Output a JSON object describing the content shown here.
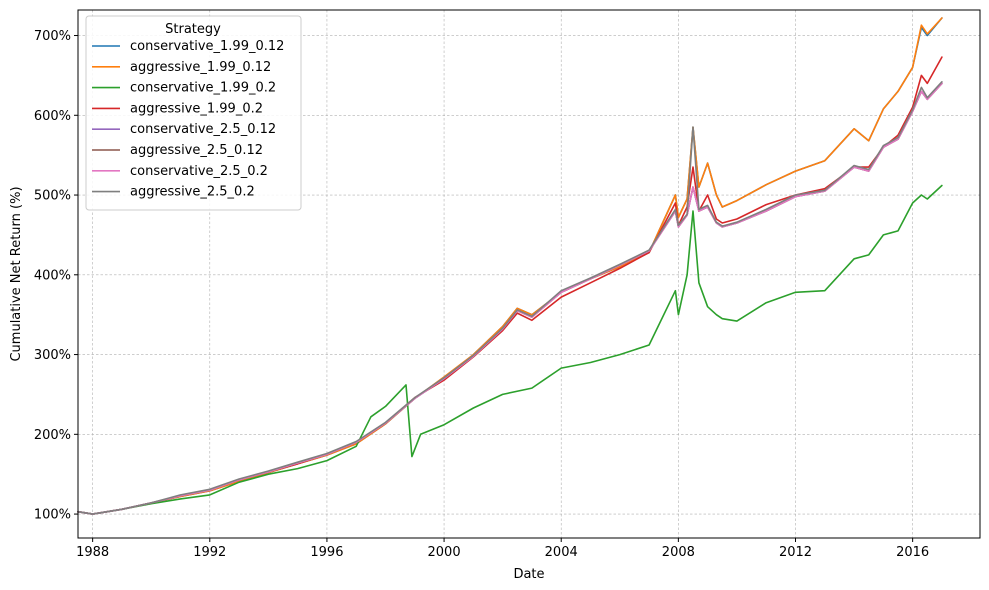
{
  "chart_data": {
    "type": "line",
    "xlabel": "Date",
    "ylabel": "Cumulative Net Return (%)",
    "x_ticks": [
      "1988",
      "1992",
      "1996",
      "2000",
      "2004",
      "2008",
      "2012",
      "2016"
    ],
    "y_ticks": [
      "100%",
      "200%",
      "300%",
      "400%",
      "500%",
      "600%",
      "700%"
    ],
    "xlim": [
      1987.5,
      2018.3
    ],
    "ylim": [
      70,
      732
    ],
    "grid": true,
    "legend": {
      "title": "Strategy",
      "placement": "top-left"
    },
    "x_unit": "year",
    "series": [
      {
        "name": "conservative_1.99_0.12",
        "color": "#1f77b4",
        "x": [
          1987.5,
          1988.0,
          1989.0,
          1990.0,
          1991.0,
          1992.0,
          1993.0,
          1994.0,
          1995.0,
          1996.0,
          1997.0,
          1998.0,
          1999.0,
          2000.0,
          2001.0,
          2002.0,
          2002.5,
          2003.0,
          2004.0,
          2005.0,
          2006.0,
          2007.0,
          2007.9,
          2008.0,
          2008.3,
          2008.5,
          2008.7,
          2009.0,
          2009.3,
          2009.5,
          2010.0,
          2011.0,
          2012.0,
          2013.0,
          2014.0,
          2014.5,
          2015.0,
          2015.5,
          2016.0,
          2016.3,
          2016.5,
          2017.0
        ],
        "y": [
          103,
          100,
          106,
          114,
          122,
          129,
          141,
          152,
          163,
          174,
          188,
          213,
          245,
          270,
          300,
          335,
          358,
          350,
          378,
          395,
          410,
          428,
          500,
          472,
          495,
          585,
          510,
          540,
          500,
          485,
          493,
          513,
          530,
          543,
          583,
          568,
          608,
          630,
          660,
          710,
          700,
          722
        ]
      },
      {
        "name": "aggressive_1.99_0.12",
        "color": "#ff7f0e",
        "x": [
          1987.5,
          1988.0,
          1989.0,
          1990.0,
          1991.0,
          1992.0,
          1993.0,
          1994.0,
          1995.0,
          1996.0,
          1997.0,
          1998.0,
          1999.0,
          2000.0,
          2001.0,
          2002.0,
          2002.5,
          2003.0,
          2004.0,
          2005.0,
          2006.0,
          2007.0,
          2007.9,
          2008.0,
          2008.3,
          2008.5,
          2008.7,
          2009.0,
          2009.3,
          2009.5,
          2010.0,
          2011.0,
          2012.0,
          2013.0,
          2014.0,
          2014.5,
          2015.0,
          2015.5,
          2016.0,
          2016.3,
          2016.5,
          2017.0
        ],
        "y": [
          103,
          100,
          106,
          114,
          122,
          129,
          141,
          152,
          163,
          174,
          188,
          213,
          245,
          272,
          300,
          335,
          358,
          350,
          378,
          395,
          410,
          428,
          500,
          472,
          495,
          585,
          510,
          540,
          500,
          485,
          493,
          513,
          530,
          543,
          583,
          568,
          608,
          630,
          660,
          713,
          702,
          722
        ]
      },
      {
        "name": "conservative_1.99_0.2",
        "color": "#2ca02c",
        "x": [
          1987.5,
          1988.0,
          1989.0,
          1990.0,
          1991.0,
          1992.0,
          1993.0,
          1994.0,
          1995.0,
          1996.0,
          1997.0,
          1997.5,
          1998.0,
          1998.7,
          1998.9,
          1999.2,
          2000.0,
          2001.0,
          2002.0,
          2003.0,
          2004.0,
          2005.0,
          2006.0,
          2007.0,
          2007.9,
          2008.0,
          2008.3,
          2008.5,
          2008.7,
          2009.0,
          2009.3,
          2009.5,
          2010.0,
          2011.0,
          2012.0,
          2013.0,
          2014.0,
          2014.5,
          2015.0,
          2015.5,
          2016.0,
          2016.3,
          2016.5,
          2017.0
        ],
        "y": [
          103,
          100,
          106,
          113,
          119,
          124,
          140,
          150,
          157,
          167,
          185,
          222,
          235,
          262,
          172,
          200,
          212,
          233,
          250,
          258,
          283,
          290,
          300,
          312,
          380,
          350,
          400,
          480,
          390,
          360,
          350,
          345,
          342,
          365,
          378,
          380,
          420,
          425,
          450,
          455,
          490,
          500,
          495,
          512
        ]
      },
      {
        "name": "aggressive_1.99_0.2",
        "color": "#d62728",
        "x": [
          1987.5,
          1988.0,
          1989.0,
          1990.0,
          1991.0,
          1992.0,
          1993.0,
          1994.0,
          1995.0,
          1996.0,
          1997.0,
          1998.0,
          1999.0,
          2000.0,
          2001.0,
          2002.0,
          2002.5,
          2003.0,
          2004.0,
          2005.0,
          2006.0,
          2007.0,
          2007.9,
          2008.0,
          2008.3,
          2008.5,
          2008.7,
          2009.0,
          2009.3,
          2009.5,
          2010.0,
          2011.0,
          2012.0,
          2013.0,
          2014.0,
          2014.5,
          2015.0,
          2015.5,
          2016.0,
          2016.3,
          2016.5,
          2017.0
        ],
        "y": [
          103,
          100,
          106,
          114,
          123,
          130,
          143,
          153,
          163,
          175,
          190,
          214,
          246,
          268,
          297,
          330,
          352,
          343,
          372,
          390,
          408,
          428,
          490,
          462,
          485,
          535,
          480,
          500,
          470,
          465,
          470,
          488,
          500,
          508,
          535,
          535,
          560,
          575,
          610,
          650,
          640,
          673
        ]
      },
      {
        "name": "conservative_2.5_0.12",
        "color": "#9467bd",
        "x": [
          1987.5,
          1988.0,
          1989.0,
          1990.0,
          1991.0,
          1992.0,
          1993.0,
          1994.0,
          1995.0,
          1996.0,
          1997.0,
          1998.0,
          1999.0,
          2000.0,
          2001.0,
          2002.0,
          2002.5,
          2003.0,
          2004.0,
          2005.0,
          2006.0,
          2007.0,
          2007.9,
          2008.0,
          2008.3,
          2008.5,
          2008.7,
          2009.0,
          2009.3,
          2009.5,
          2010.0,
          2011.0,
          2012.0,
          2013.0,
          2014.0,
          2014.5,
          2015.0,
          2015.5,
          2016.0,
          2016.3,
          2016.5,
          2017.0
        ],
        "y": [
          103,
          100,
          106,
          114,
          123,
          130,
          143,
          153,
          164,
          175,
          190,
          214,
          245,
          270,
          298,
          332,
          355,
          347,
          378,
          395,
          412,
          430,
          480,
          460,
          475,
          510,
          480,
          485,
          465,
          460,
          465,
          480,
          498,
          505,
          535,
          530,
          560,
          570,
          605,
          630,
          620,
          640
        ]
      },
      {
        "name": "aggressive_2.5_0.12",
        "color": "#8c564b",
        "x": [
          1987.5,
          1988.0,
          1989.0,
          1990.0,
          1991.0,
          1992.0,
          1993.0,
          1994.0,
          1995.0,
          1996.0,
          1997.0,
          1998.0,
          1999.0,
          2000.0,
          2001.0,
          2002.0,
          2002.5,
          2003.0,
          2004.0,
          2005.0,
          2006.0,
          2007.0,
          2007.9,
          2008.0,
          2008.3,
          2008.5,
          2008.7,
          2009.0,
          2009.3,
          2009.5,
          2010.0,
          2011.0,
          2012.0,
          2013.0,
          2014.0,
          2014.5,
          2015.0,
          2015.5,
          2016.0,
          2016.3,
          2016.5,
          2017.0
        ],
        "y": [
          103,
          100,
          106,
          114,
          123,
          130,
          143,
          153,
          164,
          175,
          190,
          214,
          245,
          270,
          298,
          332,
          355,
          347,
          378,
          395,
          412,
          430,
          480,
          460,
          475,
          510,
          480,
          485,
          465,
          460,
          465,
          480,
          498,
          505,
          535,
          530,
          560,
          570,
          605,
          630,
          620,
          640
        ]
      },
      {
        "name": "conservative_2.5_0.2",
        "color": "#e377c2",
        "x": [
          1987.5,
          1988.0,
          1989.0,
          1990.0,
          1991.0,
          1992.0,
          1993.0,
          1994.0,
          1995.0,
          1996.0,
          1997.0,
          1998.0,
          1999.0,
          2000.0,
          2001.0,
          2002.0,
          2002.5,
          2003.0,
          2004.0,
          2005.0,
          2006.0,
          2007.0,
          2007.9,
          2008.0,
          2008.3,
          2008.5,
          2008.7,
          2009.0,
          2009.3,
          2009.5,
          2010.0,
          2011.0,
          2012.0,
          2013.0,
          2014.0,
          2014.5,
          2015.0,
          2015.5,
          2016.0,
          2016.3,
          2016.5,
          2017.0
        ],
        "y": [
          103,
          100,
          106,
          114,
          123,
          130,
          143,
          153,
          164,
          175,
          190,
          214,
          245,
          270,
          298,
          332,
          355,
          347,
          378,
          395,
          412,
          430,
          480,
          460,
          475,
          510,
          480,
          485,
          465,
          460,
          465,
          480,
          498,
          505,
          535,
          530,
          560,
          570,
          605,
          630,
          620,
          640
        ]
      },
      {
        "name": "aggressive_2.5_0.2",
        "color": "#7f7f7f",
        "x": [
          1987.5,
          1988.0,
          1989.0,
          1990.0,
          1991.0,
          1992.0,
          1993.0,
          1994.0,
          1995.0,
          1996.0,
          1997.0,
          1998.0,
          1999.0,
          2000.0,
          2001.0,
          2002.0,
          2002.5,
          2003.0,
          2004.0,
          2005.0,
          2006.0,
          2007.0,
          2007.9,
          2008.0,
          2008.3,
          2008.5,
          2008.7,
          2009.0,
          2009.3,
          2009.5,
          2010.0,
          2011.0,
          2012.0,
          2013.0,
          2014.0,
          2014.5,
          2015.0,
          2015.5,
          2016.0,
          2016.3,
          2016.5,
          2017.0
        ],
        "y": [
          103,
          100,
          106,
          114,
          124,
          131,
          144,
          154,
          165,
          176,
          191,
          215,
          246,
          271,
          299,
          333,
          356,
          348,
          380,
          396,
          413,
          431,
          482,
          462,
          476,
          585,
          482,
          487,
          466,
          461,
          466,
          482,
          500,
          506,
          537,
          532,
          562,
          572,
          607,
          635,
          622,
          642
        ]
      }
    ]
  }
}
